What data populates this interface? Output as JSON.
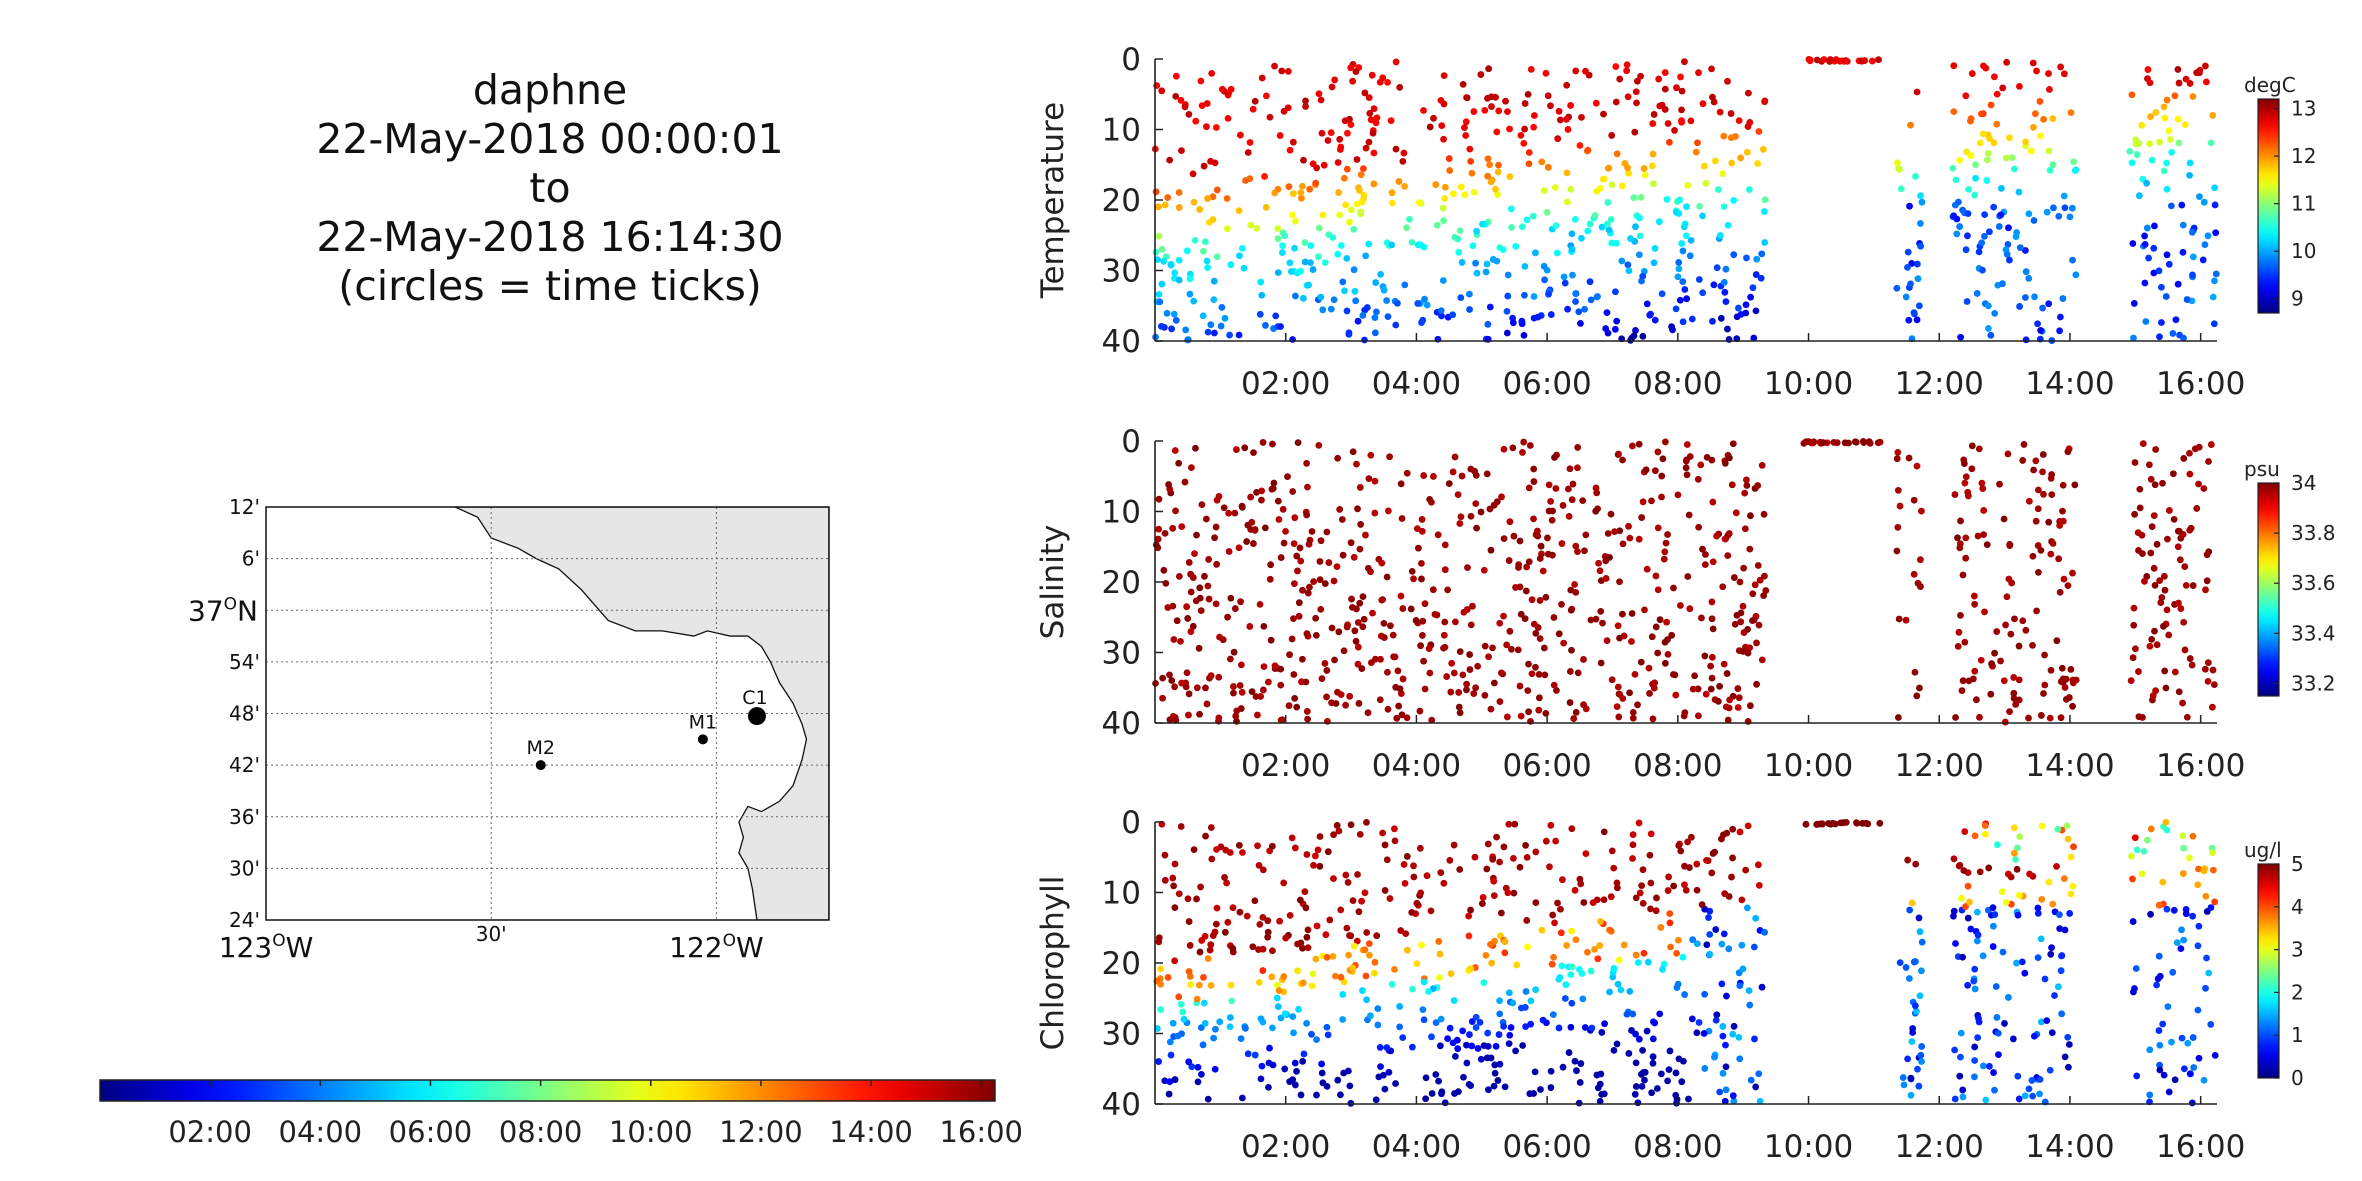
{
  "title": {
    "lines": [
      "daphne",
      "22-May-2018 00:00:01",
      "to",
      "22-May-2018 16:14:30",
      "(circles = time ticks)"
    ]
  },
  "map": {
    "lat_tick_labels": [
      "12'",
      "6'",
      "37ON",
      "54'",
      "48'",
      "42'",
      "36'",
      "30'",
      "24'"
    ],
    "lat_major": {
      "deg": "37",
      "sup": "O",
      "hemi": "N"
    },
    "lon_tick_labels": [
      "123OW",
      "30'",
      "122OW"
    ],
    "lon_major": [
      {
        "deg": "123",
        "sup": "O",
        "hemi": "W"
      },
      {
        "deg": "122",
        "sup": "O",
        "hemi": "W"
      }
    ],
    "lon_minor": "30'",
    "stations": [
      {
        "name": "M2",
        "lon": -122.39,
        "lat": 36.7
      },
      {
        "name": "M1",
        "lon": -122.03,
        "lat": 36.75
      },
      {
        "name": "C1",
        "lon": -121.91,
        "lat": 36.795
      }
    ],
    "lat_range": [
      36.4,
      37.2
    ],
    "lon_range": [
      -123.0,
      -121.75
    ],
    "land_color": "#e6e6e6"
  },
  "time_colorbar": {
    "tick_labels": [
      "02:00",
      "04:00",
      "06:00",
      "08:00",
      "10:00",
      "12:00",
      "14:00",
      "16:00"
    ],
    "hours_range": [
      0,
      16.25
    ],
    "colormap": "jet"
  },
  "chart_data": [
    {
      "type": "scatter",
      "ylabel": "Temperature",
      "unit": "degC",
      "colorbar_ticks": [
        "13",
        "12",
        "11",
        "10",
        "9"
      ],
      "clim": [
        8.7,
        13.2
      ],
      "ylim": [
        40,
        0
      ],
      "xlim_hours": [
        0,
        16.25
      ],
      "x_tick_labels": [
        "02:00",
        "04:00",
        "06:00",
        "08:00",
        "10:00",
        "12:00",
        "14:00",
        "16:00"
      ],
      "y_tick_labels": [
        "0",
        "10",
        "20",
        "30",
        "40"
      ],
      "grid": false,
      "profile": "temperature"
    },
    {
      "type": "scatter",
      "ylabel": "Salinity",
      "unit": "psu",
      "colorbar_ticks": [
        "34",
        "33.8",
        "33.6",
        "33.4",
        "33.2"
      ],
      "clim": [
        33.15,
        34.0
      ],
      "ylim": [
        40,
        0
      ],
      "xlim_hours": [
        0,
        16.25
      ],
      "x_tick_labels": [
        "02:00",
        "04:00",
        "06:00",
        "08:00",
        "10:00",
        "12:00",
        "14:00",
        "16:00"
      ],
      "y_tick_labels": [
        "0",
        "10",
        "20",
        "30",
        "40"
      ],
      "grid": false,
      "profile": "salinity"
    },
    {
      "type": "scatter",
      "ylabel": "Chlorophyll",
      "unit": "ug/l",
      "colorbar_ticks": [
        "5",
        "4",
        "3",
        "2",
        "1",
        "0"
      ],
      "clim": [
        0,
        5
      ],
      "ylim": [
        40,
        0
      ],
      "xlim_hours": [
        0,
        16.25
      ],
      "x_tick_labels": [
        "02:00",
        "04:00",
        "06:00",
        "08:00",
        "10:00",
        "12:00",
        "14:00",
        "16:00"
      ],
      "y_tick_labels": [
        "0",
        "10",
        "20",
        "30",
        "40"
      ],
      "grid": false,
      "profile": "chlorophyll"
    }
  ]
}
